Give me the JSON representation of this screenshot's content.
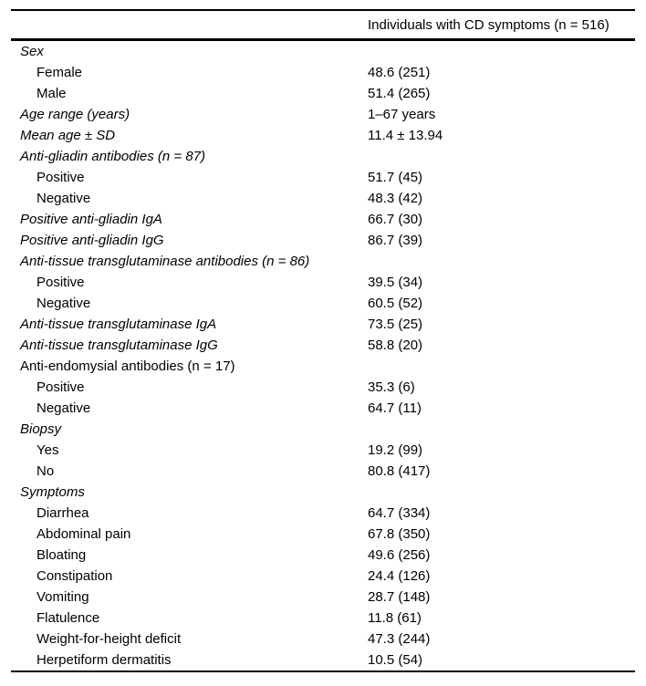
{
  "page": {
    "background_color": "#ffffff",
    "text_color": "#000000",
    "rule_color": "#000000"
  },
  "table": {
    "column_header": "Individuals with CD symptoms (n = 516)",
    "rows": [
      {
        "label": "Sex",
        "value": "",
        "italic": true,
        "indent": false
      },
      {
        "label": "Female",
        "value": "48.6 (251)",
        "italic": false,
        "indent": true
      },
      {
        "label": "Male",
        "value": "51.4 (265)",
        "italic": false,
        "indent": true
      },
      {
        "label": "Age range (years)",
        "value": "1–67 years",
        "italic": true,
        "indent": false
      },
      {
        "label": "Mean age ± SD",
        "value": "11.4 ± 13.94",
        "italic": true,
        "indent": false
      },
      {
        "label": "Anti-gliadin antibodies (n = 87)",
        "value": "",
        "italic": true,
        "indent": false
      },
      {
        "label": "Positive",
        "value": "51.7 (45)",
        "italic": false,
        "indent": true
      },
      {
        "label": "Negative",
        "value": "48.3 (42)",
        "italic": false,
        "indent": true
      },
      {
        "label": "Positive anti-gliadin IgA",
        "value": "66.7 (30)",
        "italic": true,
        "indent": false
      },
      {
        "label": "Positive anti-gliadin IgG",
        "value": "86.7 (39)",
        "italic": true,
        "indent": false
      },
      {
        "label": "Anti-tissue transglutaminase antibodies (n = 86)",
        "value": "",
        "italic": true,
        "indent": false
      },
      {
        "label": "Positive",
        "value": "39.5 (34)",
        "italic": false,
        "indent": true
      },
      {
        "label": "Negative",
        "value": "60.5 (52)",
        "italic": false,
        "indent": true
      },
      {
        "label": "Anti-tissue transglutaminase IgA",
        "value": "73.5 (25)",
        "italic": true,
        "indent": false
      },
      {
        "label": "Anti-tissue transglutaminase IgG",
        "value": "58.8 (20)",
        "italic": true,
        "indent": false
      },
      {
        "label": "Anti-endomysial antibodies (n = 17)",
        "value": "",
        "italic": false,
        "indent": false
      },
      {
        "label": "Positive",
        "value": "35.3 (6)",
        "italic": false,
        "indent": true
      },
      {
        "label": "Negative",
        "value": "64.7 (11)",
        "italic": false,
        "indent": true
      },
      {
        "label": "Biopsy",
        "value": "",
        "italic": true,
        "indent": false
      },
      {
        "label": "Yes",
        "value": "19.2 (99)",
        "italic": false,
        "indent": true
      },
      {
        "label": "No",
        "value": "80.8 (417)",
        "italic": false,
        "indent": true
      },
      {
        "label": "Symptoms",
        "value": "",
        "italic": true,
        "indent": false
      },
      {
        "label": "Diarrhea",
        "value": "64.7 (334)",
        "italic": false,
        "indent": true
      },
      {
        "label": "Abdominal pain",
        "value": "67.8 (350)",
        "italic": false,
        "indent": true
      },
      {
        "label": "Bloating",
        "value": "49.6 (256)",
        "italic": false,
        "indent": true
      },
      {
        "label": "Constipation",
        "value": "24.4 (126)",
        "italic": false,
        "indent": true
      },
      {
        "label": "Vomiting",
        "value": "28.7 (148)",
        "italic": false,
        "indent": true
      },
      {
        "label": "Flatulence",
        "value": "11.8 (61)",
        "italic": false,
        "indent": true
      },
      {
        "label": "Weight-for-height deficit",
        "value": "47.3 (244)",
        "italic": false,
        "indent": true
      },
      {
        "label": "Herpetiform dermatitis",
        "value": "10.5 (54)",
        "italic": false,
        "indent": true
      }
    ]
  }
}
